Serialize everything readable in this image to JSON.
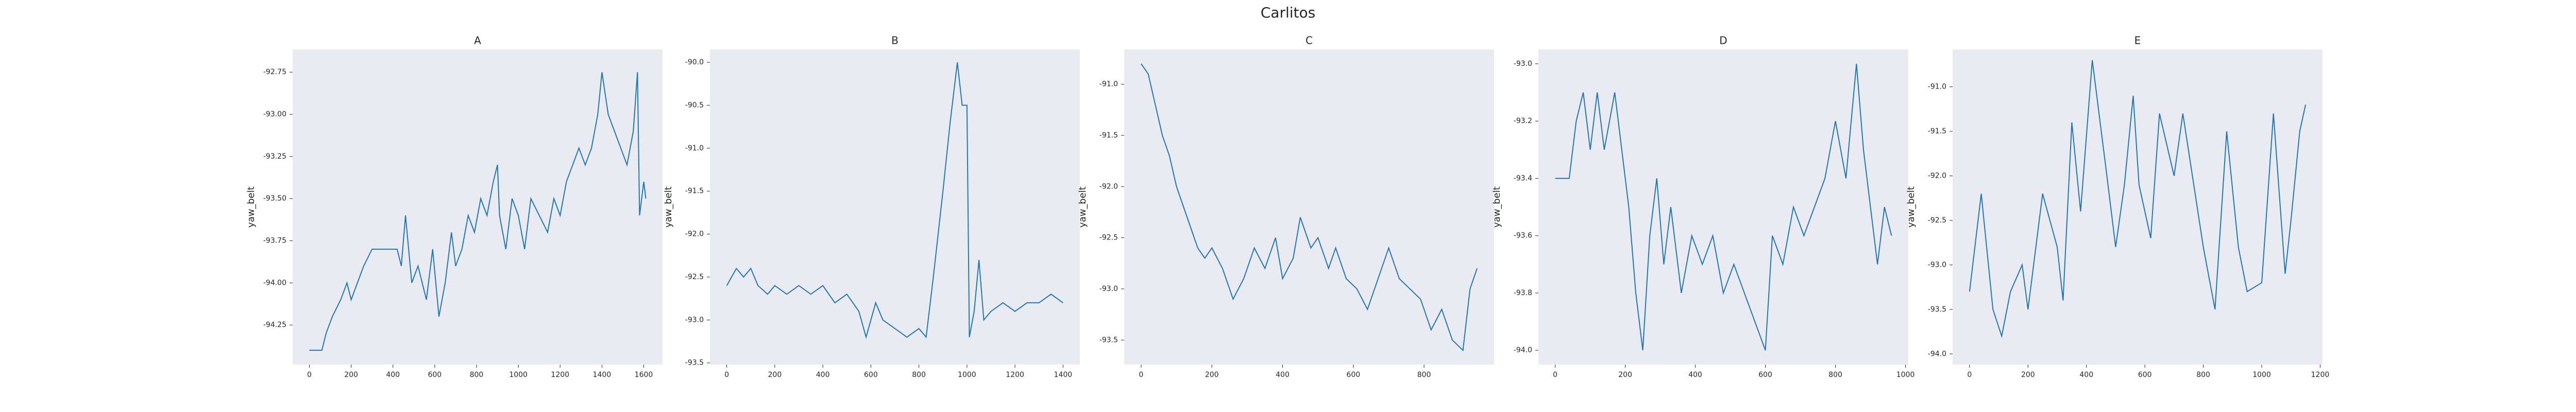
{
  "title": "Carlitos",
  "chart_data": [
    {
      "type": "line",
      "title": "A",
      "y_label": "yaw_belt",
      "color": "#1f77b4",
      "grid": false,
      "x": [
        0,
        60,
        80,
        110,
        150,
        180,
        200,
        230,
        260,
        300,
        360,
        420,
        440,
        460,
        490,
        520,
        560,
        590,
        620,
        650,
        680,
        700,
        730,
        760,
        790,
        820,
        850,
        880,
        900,
        910,
        940,
        970,
        1000,
        1030,
        1060,
        1100,
        1140,
        1170,
        1200,
        1230,
        1260,
        1290,
        1320,
        1350,
        1380,
        1400,
        1430,
        1460,
        1490,
        1520,
        1550,
        1570,
        1580,
        1600,
        1610
      ],
      "values": [
        -94.4,
        -94.4,
        -94.3,
        -94.2,
        -94.1,
        -94.0,
        -94.1,
        -94.0,
        -93.9,
        -93.8,
        -93.8,
        -93.8,
        -93.9,
        -93.6,
        -94.0,
        -93.9,
        -94.1,
        -93.8,
        -94.2,
        -94.0,
        -93.7,
        -93.9,
        -93.8,
        -93.6,
        -93.7,
        -93.5,
        -93.6,
        -93.4,
        -93.3,
        -93.6,
        -93.8,
        -93.5,
        -93.6,
        -93.8,
        -93.5,
        -93.6,
        -93.7,
        -93.5,
        -93.6,
        -93.4,
        -93.3,
        -93.2,
        -93.3,
        -93.2,
        -93.0,
        -92.75,
        -93.0,
        -93.1,
        -93.2,
        -93.3,
        -93.1,
        -92.75,
        -93.6,
        -93.4,
        -93.5
      ],
      "xlim": [
        -80,
        1690
      ],
      "ylim": [
        -94.485,
        -92.615
      ],
      "xticks": [
        0,
        200,
        400,
        600,
        800,
        1000,
        1200,
        1400,
        1600
      ],
      "yticks": [
        {
          "value": -94.25,
          "label": "-94.25"
        },
        {
          "value": -94.0,
          "label": "-94.00"
        },
        {
          "value": -93.75,
          "label": "-93.75"
        },
        {
          "value": -93.5,
          "label": "-93.50"
        },
        {
          "value": -93.25,
          "label": "-93.25"
        },
        {
          "value": -93.0,
          "label": "-93.00"
        },
        {
          "value": -92.75,
          "label": "-92.75"
        }
      ]
    },
    {
      "type": "line",
      "title": "B",
      "y_label": "yaw_belt",
      "color": "#1f77b4",
      "grid": false,
      "x": [
        0,
        20,
        40,
        70,
        100,
        130,
        170,
        200,
        250,
        300,
        350,
        400,
        450,
        500,
        550,
        580,
        620,
        650,
        700,
        750,
        800,
        830,
        860,
        900,
        930,
        960,
        980,
        1000,
        1010,
        1030,
        1050,
        1070,
        1100,
        1150,
        1200,
        1250,
        1300,
        1350,
        1400
      ],
      "values": [
        -92.6,
        -92.5,
        -92.4,
        -92.5,
        -92.4,
        -92.6,
        -92.7,
        -92.6,
        -92.7,
        -92.6,
        -92.7,
        -92.6,
        -92.8,
        -92.7,
        -92.9,
        -93.2,
        -92.8,
        -93.0,
        -93.1,
        -93.2,
        -93.1,
        -93.2,
        -92.5,
        -91.5,
        -90.7,
        -90.0,
        -90.5,
        -90.5,
        -93.2,
        -92.9,
        -92.3,
        -93.0,
        -92.9,
        -92.8,
        -92.9,
        -92.8,
        -92.8,
        -92.7,
        -92.8
      ],
      "xlim": [
        -70,
        1470
      ],
      "ylim": [
        -93.52,
        -89.85
      ],
      "xticks": [
        0,
        200,
        400,
        600,
        800,
        1000,
        1200,
        1400
      ],
      "yticks": [
        {
          "value": -93.5,
          "label": "-93.5"
        },
        {
          "value": -93.0,
          "label": "-93.0"
        },
        {
          "value": -92.5,
          "label": "-92.5"
        },
        {
          "value": -92.0,
          "label": "-92.0"
        },
        {
          "value": -91.5,
          "label": "-91.5"
        },
        {
          "value": -91.0,
          "label": "-91.0"
        },
        {
          "value": -90.5,
          "label": "-90.5"
        },
        {
          "value": -90.0,
          "label": "-90.0"
        }
      ]
    },
    {
      "type": "line",
      "title": "C",
      "y_label": "yaw_belt",
      "color": "#1f77b4",
      "grid": false,
      "x": [
        0,
        20,
        40,
        60,
        80,
        100,
        120,
        140,
        160,
        180,
        200,
        230,
        260,
        290,
        320,
        350,
        380,
        400,
        430,
        450,
        480,
        500,
        530,
        550,
        580,
        610,
        640,
        670,
        700,
        730,
        760,
        790,
        820,
        850,
        880,
        910,
        930,
        950
      ],
      "values": [
        -90.8,
        -90.9,
        -91.2,
        -91.5,
        -91.7,
        -92.0,
        -92.2,
        -92.4,
        -92.6,
        -92.7,
        -92.6,
        -92.8,
        -93.1,
        -92.9,
        -92.6,
        -92.8,
        -92.5,
        -92.9,
        -92.7,
        -92.3,
        -92.6,
        -92.5,
        -92.8,
        -92.6,
        -92.9,
        -93.0,
        -93.2,
        -92.9,
        -92.6,
        -92.9,
        -93.0,
        -93.1,
        -93.4,
        -93.2,
        -93.5,
        -93.6,
        -93.0,
        -92.8
      ],
      "xlim": [
        -48,
        998
      ],
      "ylim": [
        -93.74,
        -90.66
      ],
      "xticks": [
        0,
        200,
        400,
        600,
        800
      ],
      "yticks": [
        {
          "value": -93.5,
          "label": "-93.5"
        },
        {
          "value": -93.0,
          "label": "-93.0"
        },
        {
          "value": -92.5,
          "label": "-92.5"
        },
        {
          "value": -92.0,
          "label": "-92.0"
        },
        {
          "value": -91.5,
          "label": "-91.5"
        },
        {
          "value": -91.0,
          "label": "-91.0"
        }
      ]
    },
    {
      "type": "line",
      "title": "D",
      "y_label": "yaw_belt",
      "color": "#1f77b4",
      "grid": false,
      "x": [
        0,
        40,
        60,
        80,
        100,
        120,
        140,
        170,
        190,
        210,
        230,
        250,
        270,
        290,
        310,
        330,
        360,
        390,
        420,
        450,
        480,
        510,
        540,
        570,
        600,
        620,
        650,
        680,
        710,
        740,
        770,
        800,
        830,
        860,
        880,
        900,
        920,
        940,
        960
      ],
      "values": [
        -93.4,
        -93.4,
        -93.2,
        -93.1,
        -93.3,
        -93.1,
        -93.3,
        -93.1,
        -93.3,
        -93.5,
        -93.8,
        -94.0,
        -93.6,
        -93.4,
        -93.7,
        -93.5,
        -93.8,
        -93.6,
        -93.7,
        -93.6,
        -93.8,
        -93.7,
        -93.8,
        -93.9,
        -94.0,
        -93.6,
        -93.7,
        -93.5,
        -93.6,
        -93.5,
        -93.4,
        -93.2,
        -93.4,
        -93.0,
        -93.3,
        -93.5,
        -93.7,
        -93.5,
        -93.6
      ],
      "xlim": [
        -48,
        1008
      ],
      "ylim": [
        -94.05,
        -92.95
      ],
      "xticks": [
        0,
        200,
        400,
        600,
        800,
        1000
      ],
      "yticks": [
        {
          "value": -94.0,
          "label": "-94.0"
        },
        {
          "value": -93.8,
          "label": "-93.8"
        },
        {
          "value": -93.6,
          "label": "-93.6"
        },
        {
          "value": -93.4,
          "label": "-93.4"
        },
        {
          "value": -93.2,
          "label": "-93.2"
        },
        {
          "value": -93.0,
          "label": "-93.0"
        }
      ]
    },
    {
      "type": "line",
      "title": "E",
      "y_label": "yaw_belt",
      "color": "#1f77b4",
      "grid": false,
      "x": [
        0,
        40,
        80,
        110,
        140,
        180,
        200,
        250,
        300,
        320,
        350,
        380,
        420,
        470,
        500,
        530,
        560,
        580,
        620,
        650,
        700,
        730,
        800,
        840,
        880,
        920,
        950,
        1000,
        1040,
        1080,
        1100,
        1130,
        1150
      ],
      "values": [
        -93.3,
        -92.2,
        -93.5,
        -93.8,
        -93.3,
        -93.0,
        -93.5,
        -92.2,
        -92.8,
        -93.4,
        -91.4,
        -92.4,
        -90.7,
        -92.0,
        -92.8,
        -92.1,
        -91.1,
        -92.1,
        -92.7,
        -91.3,
        -92.0,
        -91.3,
        -92.8,
        -93.5,
        -91.5,
        -92.8,
        -93.3,
        -93.2,
        -91.3,
        -93.1,
        -92.5,
        -91.5,
        -91.2
      ],
      "xlim": [
        -58,
        1208
      ],
      "ylim": [
        -94.12,
        -90.58
      ],
      "xticks": [
        0,
        200,
        400,
        600,
        800,
        1000,
        1200
      ],
      "yticks": [
        {
          "value": -94.0,
          "label": "-94.0"
        },
        {
          "value": -93.5,
          "label": "-93.5"
        },
        {
          "value": -93.0,
          "label": "-93.0"
        },
        {
          "value": -92.5,
          "label": "-92.5"
        },
        {
          "value": -92.0,
          "label": "-92.0"
        },
        {
          "value": -91.5,
          "label": "-91.5"
        },
        {
          "value": -91.0,
          "label": "-91.0"
        }
      ]
    }
  ]
}
